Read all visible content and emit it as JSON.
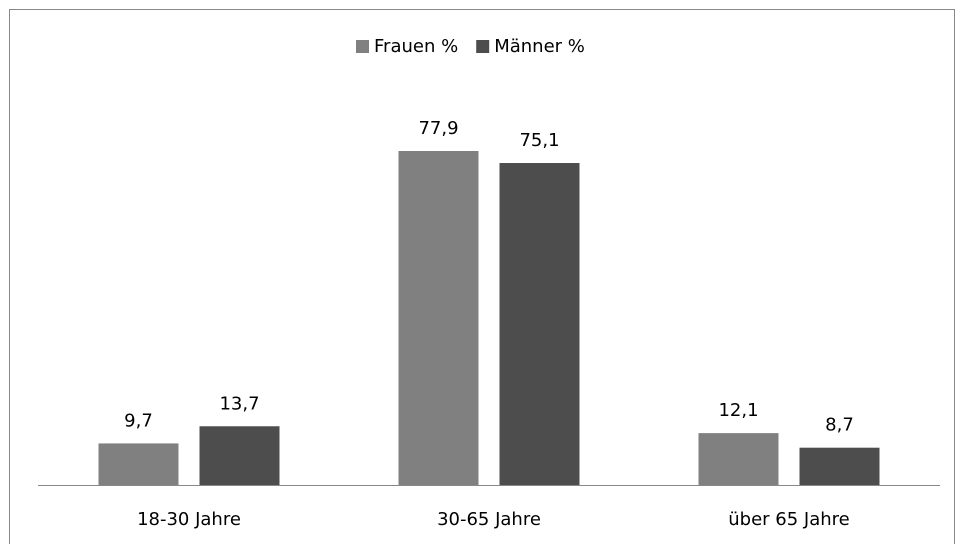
{
  "chart_data": {
    "type": "bar",
    "categories": [
      "18-30 Jahre",
      "30-65 Jahre",
      "über 65 Jahre"
    ],
    "series": [
      {
        "name": "Frauen %",
        "color": "#808080",
        "values": [
          9.7,
          77.9,
          12.1
        ],
        "value_labels": [
          "9,7",
          "77,9",
          "12,1"
        ]
      },
      {
        "name": "Männer %",
        "color": "#4d4d4d",
        "values": [
          13.7,
          75.1,
          8.7
        ],
        "value_labels": [
          "13,7",
          "75,1",
          "8,7"
        ]
      }
    ],
    "ylim": [
      0,
      80
    ],
    "legend": "top"
  }
}
